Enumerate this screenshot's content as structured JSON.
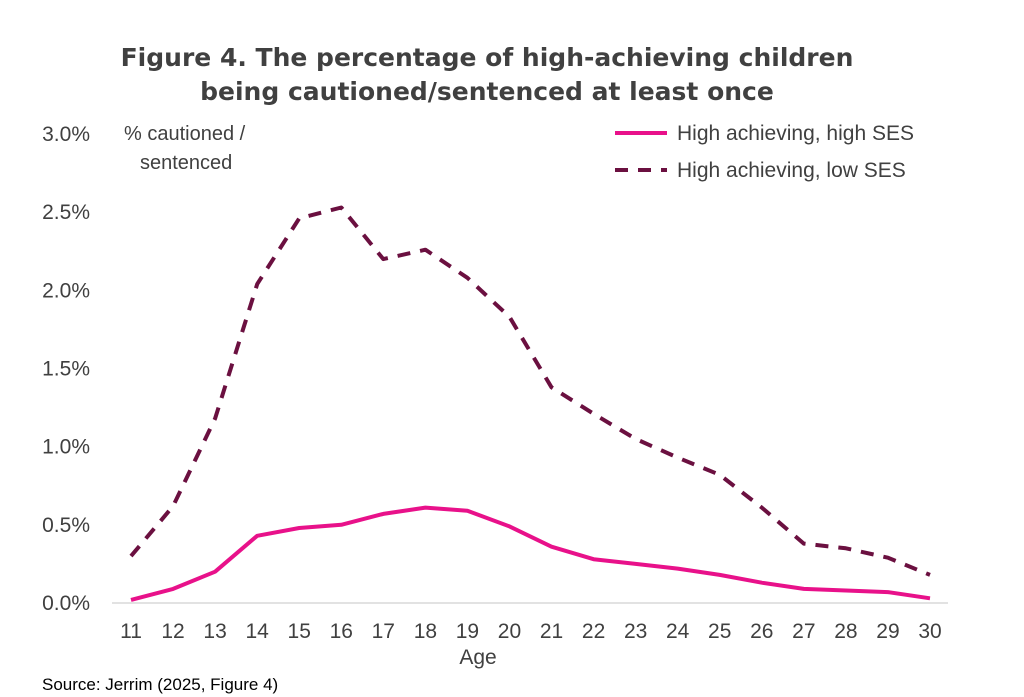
{
  "chart_data": {
    "type": "line",
    "title": [
      "Figure 4. The percentage of high-achieving children",
      "being cautioned/sentenced at least once"
    ],
    "ylabel": [
      "% cautioned /",
      "sentenced"
    ],
    "xlabel": "Age",
    "x": [
      11,
      12,
      13,
      14,
      15,
      16,
      17,
      18,
      19,
      20,
      21,
      22,
      23,
      24,
      25,
      26,
      27,
      28,
      29,
      30
    ],
    "ylim": [
      0,
      3.0
    ],
    "yticks": [
      0.0,
      0.5,
      1.0,
      1.5,
      2.0,
      2.5,
      3.0
    ],
    "ytick_labels": [
      "0.0%",
      "0.5%",
      "1.0%",
      "1.5%",
      "2.0%",
      "2.5%",
      "3.0%"
    ],
    "series": [
      {
        "name": "High achieving, high SES",
        "style": "solid",
        "color": "#e8118a",
        "values": [
          0.02,
          0.09,
          0.2,
          0.43,
          0.48,
          0.5,
          0.57,
          0.61,
          0.59,
          0.49,
          0.36,
          0.28,
          0.25,
          0.22,
          0.18,
          0.13,
          0.09,
          0.08,
          0.07,
          0.03
        ]
      },
      {
        "name": "High achieving, low SES",
        "style": "dashed",
        "color": "#6b1040",
        "values": [
          0.3,
          0.62,
          1.18,
          2.04,
          2.46,
          2.53,
          2.2,
          2.26,
          2.08,
          1.83,
          1.38,
          1.21,
          1.05,
          0.93,
          0.82,
          0.61,
          0.38,
          0.35,
          0.29,
          0.18
        ]
      }
    ],
    "legend_position": "top-right",
    "grid": false
  },
  "source": "Source: Jerrim (2025, Figure 4)"
}
